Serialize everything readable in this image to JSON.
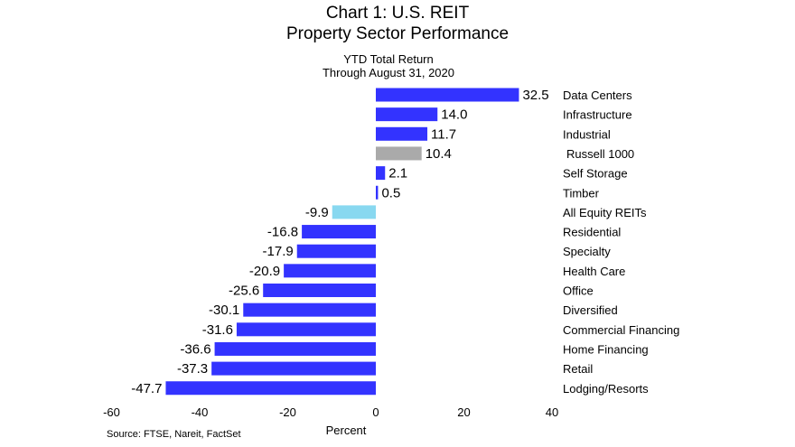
{
  "chart_data": {
    "type": "bar",
    "orientation": "horizontal",
    "title": "Chart 1: U.S. REIT",
    "title_line2": "Property Sector Performance",
    "subtitle": "YTD Total Return",
    "subtitle_line2": "Through August 31, 2020",
    "xlabel": "Percent",
    "source": "Source: FTSE, Nareit, FactSet",
    "xlim": [
      -60,
      40
    ],
    "xticks": [
      "-60",
      "-40",
      "-20",
      "0",
      "20",
      "40"
    ],
    "categories": [
      "Data Centers",
      "Infrastructure",
      "Industrial",
      "Russell 1000",
      "Self Storage",
      "Timber",
      "All Equity REITs",
      "Residential",
      "Specialty",
      "Health Care",
      "Office",
      "Diversified",
      "Commercial Financing",
      "Home Financing",
      "Retail",
      "Lodging/Resorts"
    ],
    "values": [
      32.5,
      14.0,
      11.7,
      10.4,
      2.1,
      0.5,
      -9.9,
      -16.8,
      -17.9,
      -20.9,
      -25.6,
      -30.1,
      -31.6,
      -36.6,
      -37.3,
      -47.7
    ],
    "value_labels": [
      "32.5",
      "14.0",
      "11.7",
      "10.4",
      "2.1",
      "0.5",
      "-9.9",
      "-16.8",
      "-17.9",
      "-20.9",
      "-25.6",
      "-30.1",
      "-31.6",
      "-36.6",
      "-37.3",
      "-47.7"
    ],
    "bar_colors": [
      "#3333ff",
      "#3333ff",
      "#3333ff",
      "#aaaaaa",
      "#3333ff",
      "#3333ff",
      "#88d8f0",
      "#3333ff",
      "#3333ff",
      "#3333ff",
      "#3333ff",
      "#3333ff",
      "#3333ff",
      "#3333ff",
      "#3333ff",
      "#3333ff"
    ],
    "grid": false,
    "legend": "none"
  }
}
